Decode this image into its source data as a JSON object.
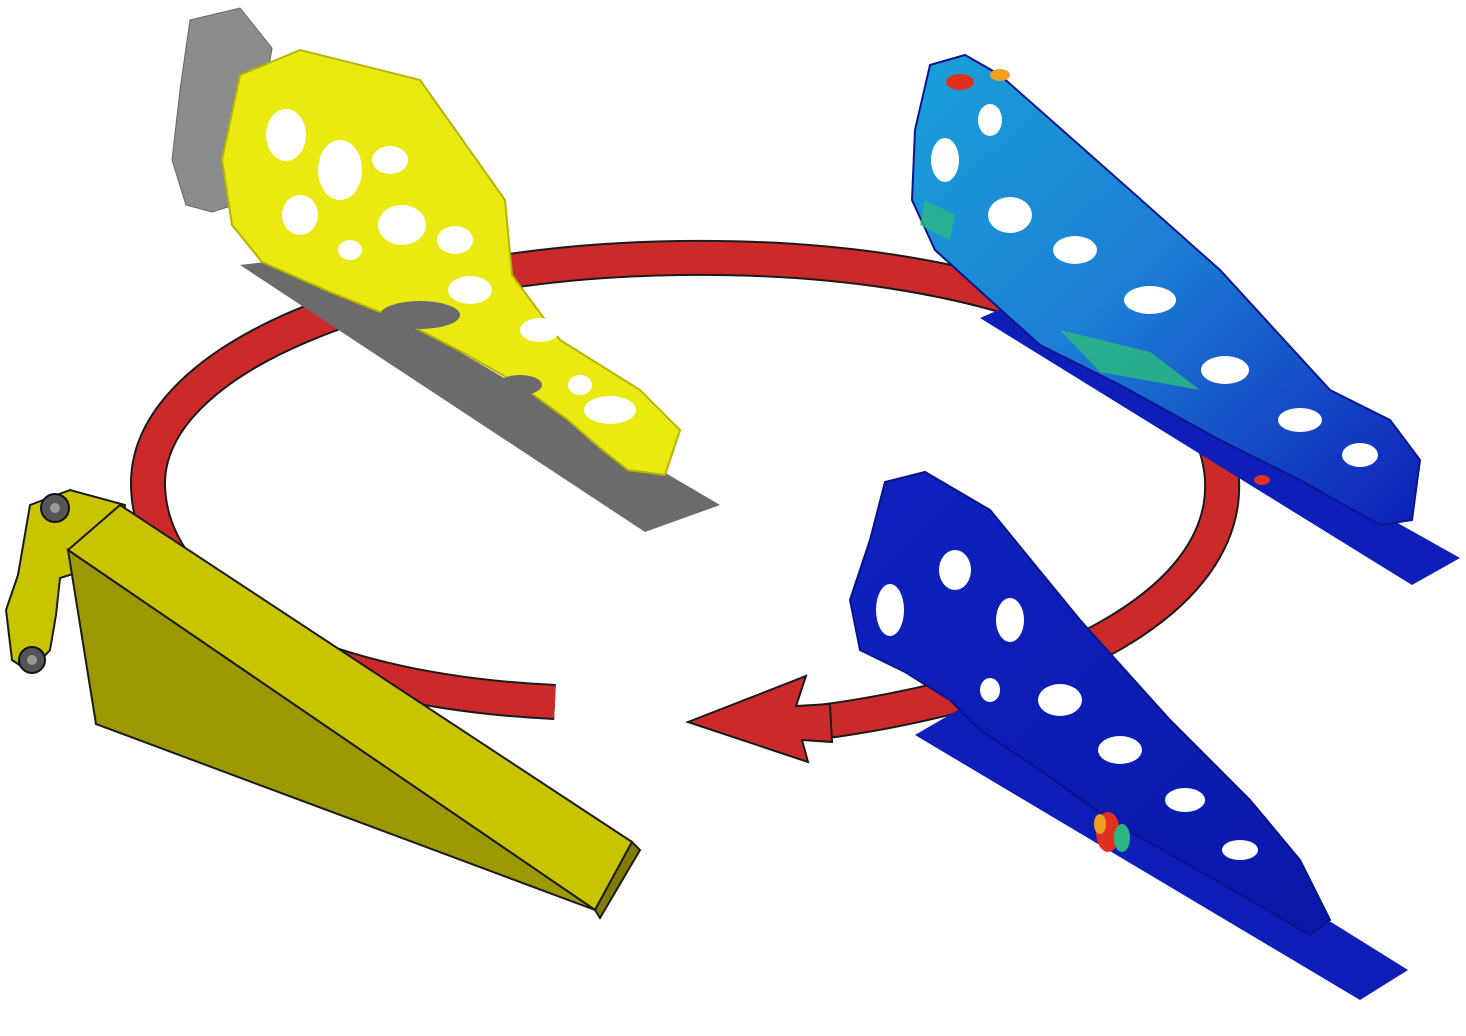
{
  "diagram": {
    "kind": "design-cycle",
    "stages": [
      {
        "name": "design-space",
        "color": "#c8c400"
      },
      {
        "name": "topology-optimization",
        "color": "#eaea10"
      },
      {
        "name": "stress-analysis",
        "color": "#1aa0d8"
      },
      {
        "name": "refined-design-analysis",
        "color": "#0d1fb8"
      }
    ],
    "cycle_arrow": {
      "color": "#cc2a2a",
      "direction": "clockwise"
    }
  },
  "colors": {
    "background": "#ffffff",
    "arrow": "#cc2a2a",
    "design_space": "#c8c400",
    "optimized": "#eaea10",
    "base_plate": "#6b6b6b",
    "stress_low": "#0d1fb8",
    "stress_mid": "#1aa0d8",
    "stress_high": "#e03020"
  }
}
